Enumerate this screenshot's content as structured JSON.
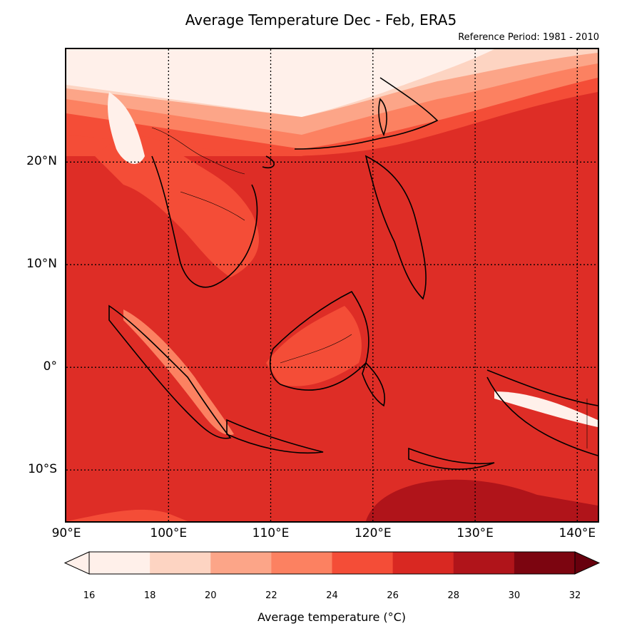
{
  "title": "Average Temperature Dec - Feb, ERA5",
  "subtitle": "Reference Period: 1981 - 2010",
  "chart_data": {
    "type": "heatmap",
    "title": "Average Temperature Dec - Feb, ERA5",
    "subtitle": "Reference Period: 1981 - 2010",
    "xlabel": "",
    "ylabel": "",
    "xlim": [
      90,
      142
    ],
    "ylim": [
      -15,
      31
    ],
    "x_ticks": [
      {
        "value": 90,
        "label": "90°E"
      },
      {
        "value": 100,
        "label": "100°E"
      },
      {
        "value": 110,
        "label": "110°E"
      },
      {
        "value": 120,
        "label": "120°E"
      },
      {
        "value": 130,
        "label": "130°E"
      },
      {
        "value": 140,
        "label": "140°E"
      }
    ],
    "y_ticks": [
      {
        "value": 20,
        "label": "20°N"
      },
      {
        "value": 10,
        "label": "10°N"
      },
      {
        "value": 0,
        "label": "0°"
      },
      {
        "value": -10,
        "label": "10°S"
      }
    ],
    "grid": true,
    "colorbar": {
      "label": "Average temperature (°C)",
      "levels": [
        16,
        18,
        20,
        22,
        24,
        26,
        28,
        30,
        32
      ],
      "tick_labels": [
        "16",
        "18",
        "20",
        "22",
        "24",
        "26",
        "28",
        "30",
        "32"
      ],
      "colors": [
        "#fff0ea",
        "#fdd4c2",
        "#fca588",
        "#fc8161",
        "#f44d37",
        "#d92822",
        "#b0141a",
        "#7c0510",
        "#67000d"
      ],
      "extend": "both"
    }
  }
}
